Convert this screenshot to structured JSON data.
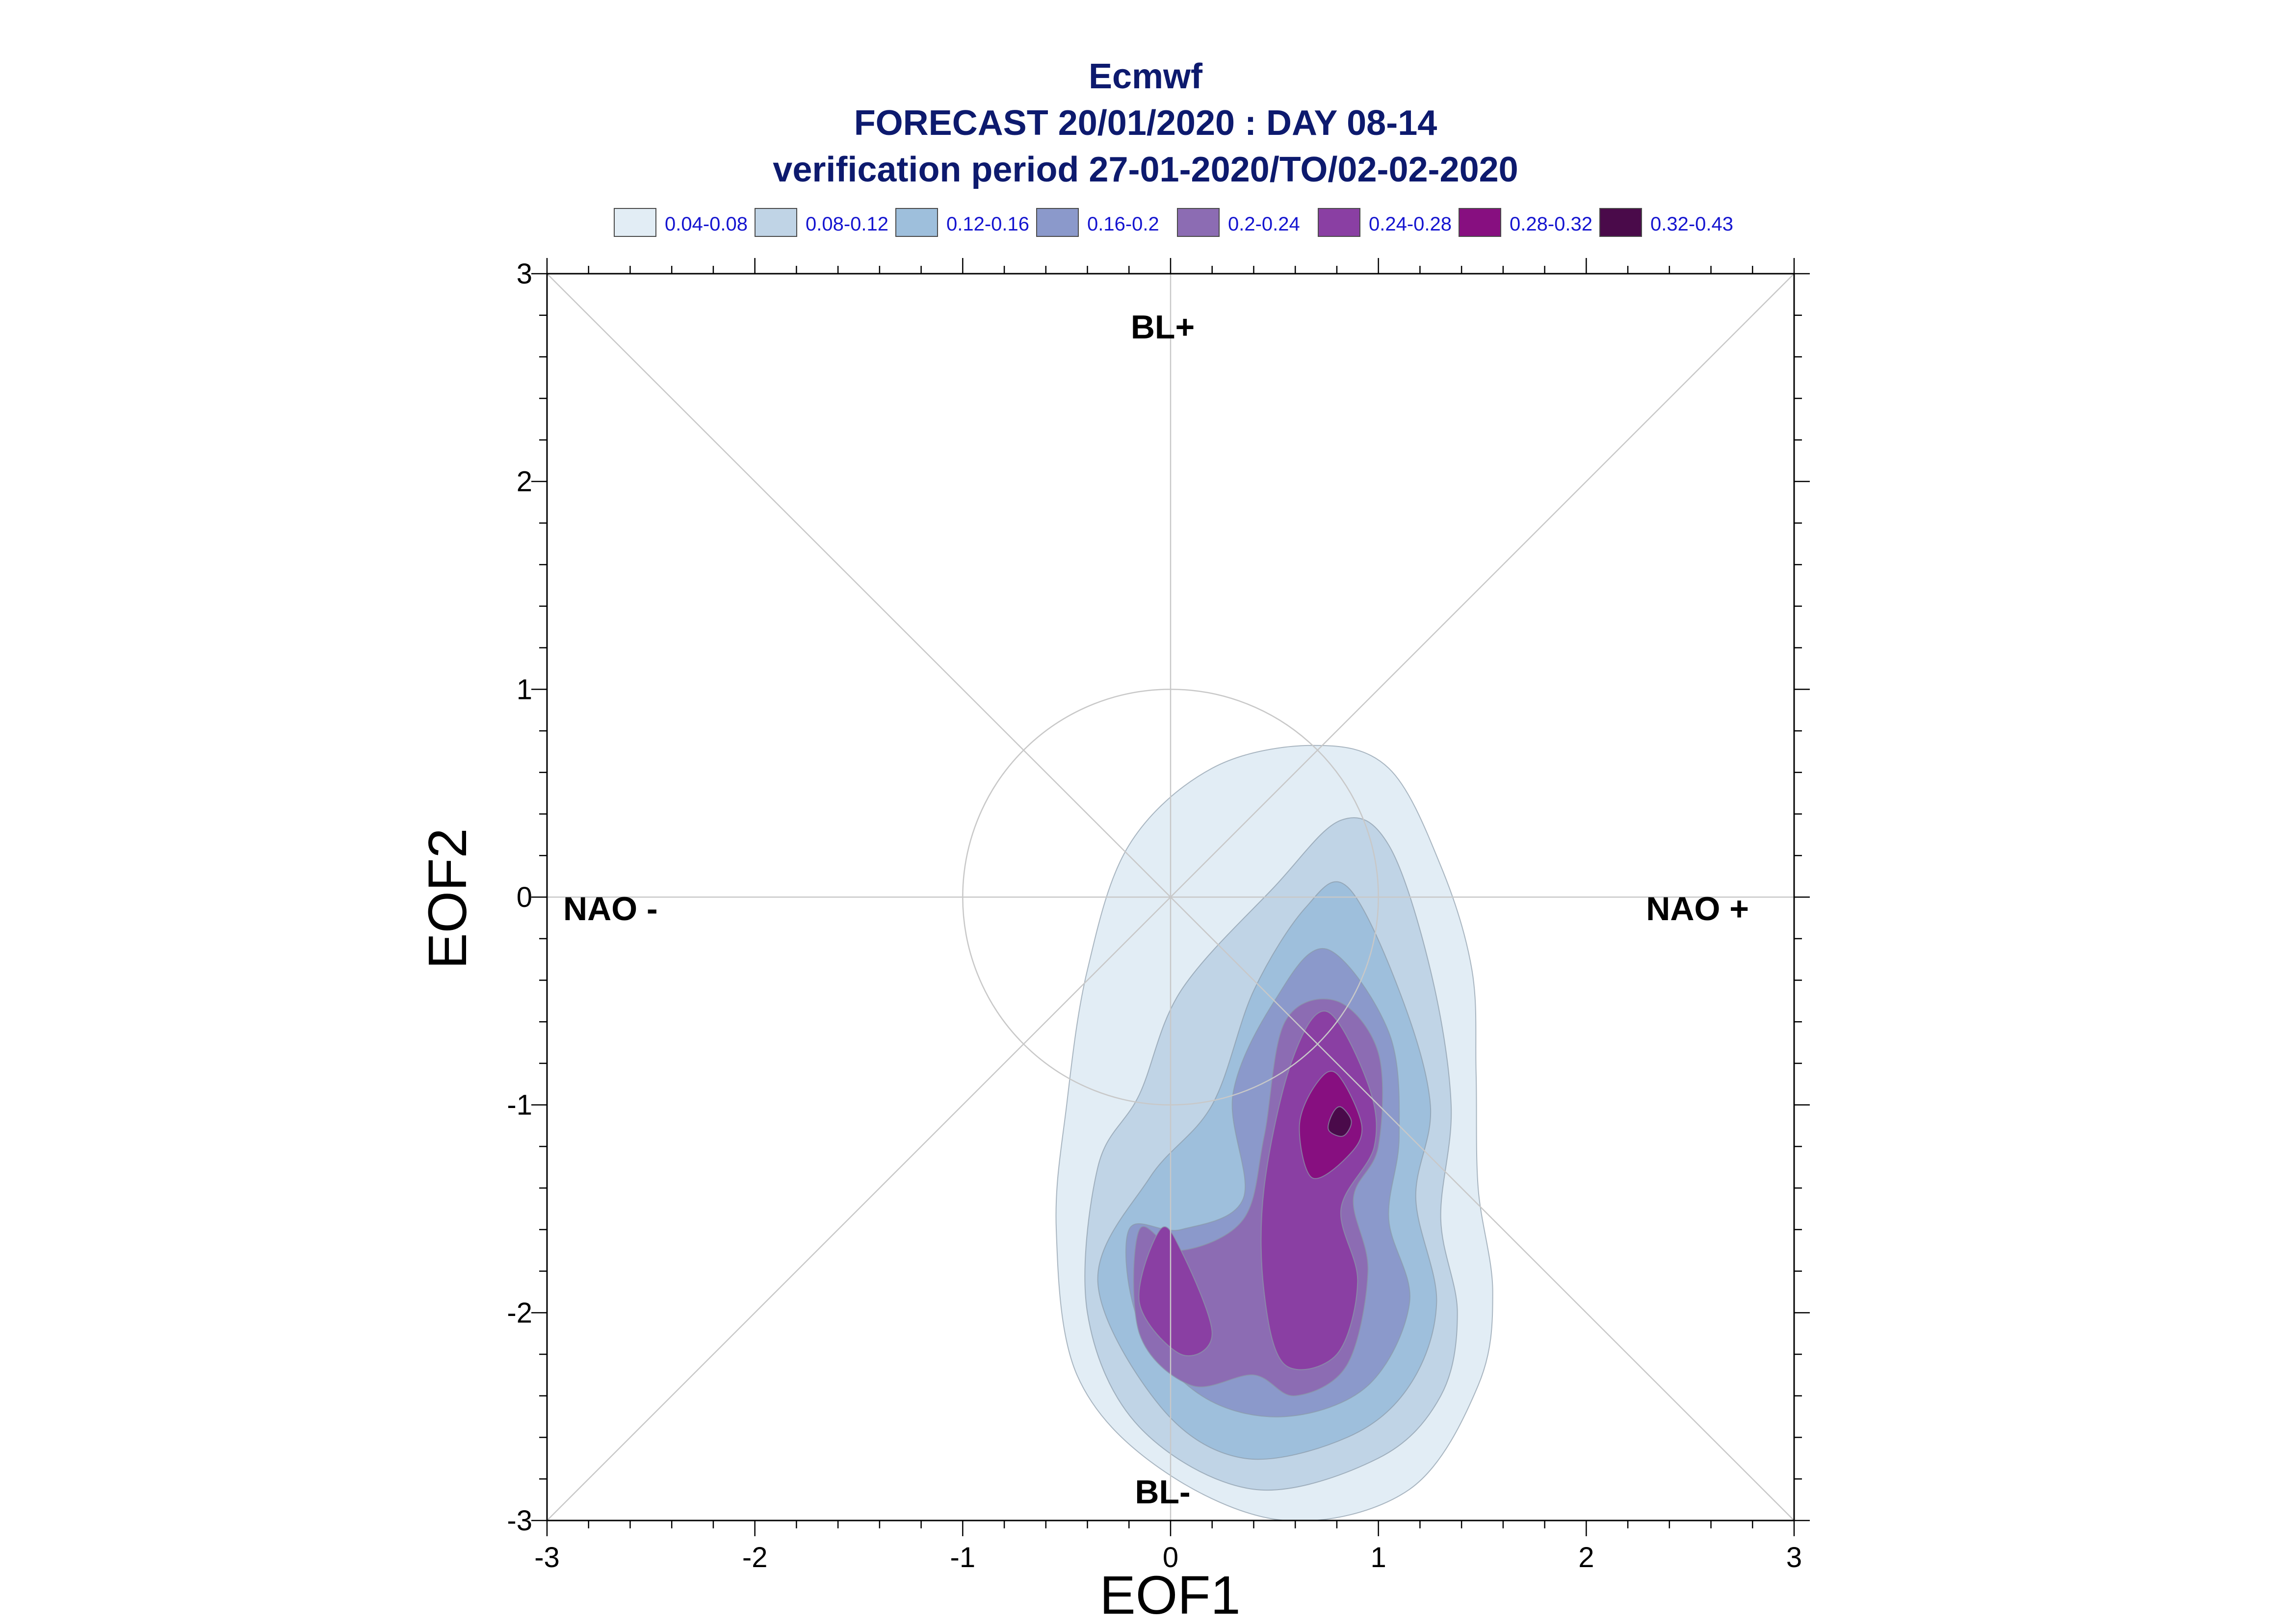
{
  "chart_data": {
    "type": "contour",
    "title_lines": [
      "Ecmwf",
      "FORECAST 20/01/2020 : DAY 08-14",
      "verification period 27-01-2020/TO/02-02-2020"
    ],
    "xlabel": "EOF1",
    "ylabel": "EOF2",
    "xlim": [
      -3,
      3
    ],
    "ylim": [
      -3,
      3
    ],
    "xticks": [
      "-3",
      "-2",
      "-1",
      "0",
      "1",
      "2",
      "3"
    ],
    "yticks": [
      "-3",
      "-2",
      "-1",
      "0",
      "1",
      "2",
      "3"
    ],
    "regions": {
      "top": "BL+",
      "bottom": "BL-",
      "left": "NAO -",
      "right": "NAO +"
    },
    "reference_circle_radius": 1,
    "grid": "diagonals and center cross",
    "legend_position": "top",
    "legend": [
      {
        "label": "0.04-0.08",
        "color": "#e2edf5"
      },
      {
        "label": "0.08-0.12",
        "color": "#c0d4e6"
      },
      {
        "label": "0.12-0.16",
        "color": "#9ebfdc"
      },
      {
        "label": "0.16-0.2",
        "color": "#8b99cb"
      },
      {
        "label": "0.2-0.24",
        "color": "#8c6cb3"
      },
      {
        "label": "0.24-0.28",
        "color": "#8a3fa3"
      },
      {
        "label": "0.28-0.32",
        "color": "#870f80"
      },
      {
        "label": "0.32-0.43",
        "color": "#4a0a4a"
      }
    ],
    "contours": [
      {
        "level": "0.04-0.08",
        "points": [
          [
            0.69,
            0.73
          ],
          [
            1.05,
            0.62
          ],
          [
            1.3,
            0.15
          ],
          [
            1.45,
            -0.35
          ],
          [
            1.47,
            -0.85
          ],
          [
            1.48,
            -1.4
          ],
          [
            1.55,
            -1.9
          ],
          [
            1.48,
            -2.35
          ],
          [
            1.15,
            -2.85
          ],
          [
            0.55,
            -3.0
          ],
          [
            -0.05,
            -2.75
          ],
          [
            -0.45,
            -2.3
          ],
          [
            -0.55,
            -1.6
          ],
          [
            -0.5,
            -1.0
          ],
          [
            -0.4,
            -0.35
          ],
          [
            -0.2,
            0.25
          ],
          [
            0.2,
            0.62
          ]
        ]
      },
      {
        "level": "0.08-0.12",
        "points": [
          [
            0.82,
            0.37
          ],
          [
            1.05,
            0.25
          ],
          [
            1.25,
            -0.35
          ],
          [
            1.35,
            -1.0
          ],
          [
            1.3,
            -1.55
          ],
          [
            1.38,
            -2.0
          ],
          [
            1.3,
            -2.4
          ],
          [
            1.0,
            -2.7
          ],
          [
            0.4,
            -2.85
          ],
          [
            -0.15,
            -2.55
          ],
          [
            -0.4,
            -2.0
          ],
          [
            -0.35,
            -1.3
          ],
          [
            -0.15,
            -0.95
          ],
          [
            0.05,
            -0.45
          ],
          [
            0.5,
            0.05
          ]
        ]
      },
      {
        "level": "0.12-0.16",
        "points": [
          [
            0.85,
            0.05
          ],
          [
            1.1,
            -0.45
          ],
          [
            1.25,
            -1.0
          ],
          [
            1.18,
            -1.45
          ],
          [
            1.28,
            -1.95
          ],
          [
            1.15,
            -2.35
          ],
          [
            0.85,
            -2.6
          ],
          [
            0.35,
            -2.7
          ],
          [
            -0.05,
            -2.45
          ],
          [
            -0.35,
            -1.85
          ],
          [
            -0.1,
            -1.35
          ],
          [
            0.2,
            -1.0
          ],
          [
            0.4,
            -0.45
          ],
          [
            0.65,
            -0.05
          ]
        ]
      },
      {
        "level": "0.16-0.2",
        "points": [
          [
            0.75,
            -0.25
          ],
          [
            1.05,
            -0.65
          ],
          [
            1.1,
            -1.15
          ],
          [
            1.05,
            -1.55
          ],
          [
            1.15,
            -1.95
          ],
          [
            0.95,
            -2.35
          ],
          [
            0.55,
            -2.5
          ],
          [
            0.15,
            -2.4
          ],
          [
            -0.15,
            -2.05
          ],
          [
            -0.2,
            -1.6
          ],
          [
            0.05,
            -1.6
          ],
          [
            0.35,
            -1.45
          ],
          [
            0.3,
            -0.95
          ],
          [
            0.5,
            -0.5
          ]
        ]
      },
      {
        "level": "0.2-0.24",
        "points": [
          [
            0.8,
            -0.5
          ],
          [
            1.0,
            -0.75
          ],
          [
            1.0,
            -1.2
          ],
          [
            0.88,
            -1.45
          ],
          [
            0.95,
            -1.8
          ],
          [
            0.85,
            -2.25
          ],
          [
            0.6,
            -2.4
          ],
          [
            0.4,
            -2.3
          ],
          [
            0.1,
            -2.35
          ],
          [
            -0.15,
            -2.1
          ],
          [
            -0.15,
            -1.6
          ],
          [
            0.05,
            -1.7
          ],
          [
            0.35,
            -1.55
          ],
          [
            0.45,
            -1.15
          ],
          [
            0.55,
            -0.6
          ]
        ]
      },
      {
        "level": "0.24-0.28",
        "points": [
          [
            0.75,
            -0.55
          ],
          [
            0.95,
            -0.9
          ],
          [
            0.98,
            -1.2
          ],
          [
            0.82,
            -1.5
          ],
          [
            0.9,
            -1.85
          ],
          [
            0.8,
            -2.2
          ],
          [
            0.55,
            -2.25
          ],
          [
            0.45,
            -1.9
          ],
          [
            0.45,
            -1.4
          ],
          [
            0.58,
            -0.8
          ]
        ]
      },
      {
        "level": "0.24-0.28",
        "points": [
          [
            -0.05,
            -1.6
          ],
          [
            0.05,
            -1.7
          ],
          [
            0.2,
            -2.1
          ],
          [
            0.05,
            -2.2
          ],
          [
            -0.15,
            -1.95
          ]
        ]
      },
      {
        "level": "0.28-0.32",
        "points": [
          [
            0.8,
            -0.85
          ],
          [
            0.92,
            -1.1
          ],
          [
            0.85,
            -1.25
          ],
          [
            0.68,
            -1.35
          ],
          [
            0.62,
            -1.1
          ],
          [
            0.7,
            -0.9
          ]
        ]
      },
      {
        "level": "0.32-0.43",
        "points": [
          [
            0.82,
            -1.01
          ],
          [
            0.87,
            -1.08
          ],
          [
            0.83,
            -1.15
          ],
          [
            0.76,
            -1.12
          ],
          [
            0.78,
            -1.04
          ]
        ]
      }
    ]
  }
}
